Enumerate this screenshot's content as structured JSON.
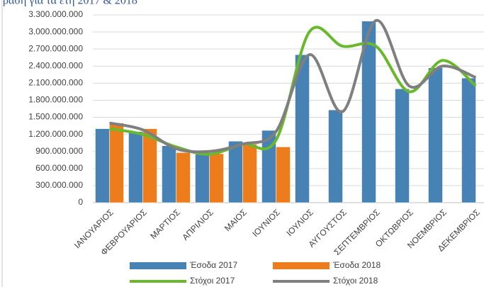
{
  "chart_data": {
    "type": "bar-line",
    "title": "ραση για τα έτη 2017 & 2018",
    "categories": [
      "ΙΑΝΟΥΑΡΙΟΣ",
      "ΦΕΒΡΟΥΑΡΙΟΣ",
      "ΜΑΡΤΙΟΣ",
      "ΑΠΡΙΛΙΟΣ",
      "ΜΑΙΟΣ",
      "ΙΟΥΝΙΟΣ",
      "ΙΟΥΛΙΟΣ",
      "ΑΥΓΟΥΣΤΟΣ",
      "ΣΕΠΤΕΜΒΡΙΟΣ",
      "ΟΚΤΩΒΡΙΟΣ",
      "ΝΟΕΜΒΡΙΟΣ",
      "ΔΕΚΕΜΒΡΙΟΣ"
    ],
    "series": [
      {
        "name": "Έσοδα 2017",
        "kind": "bar",
        "color": "#4682b4",
        "values": [
          1300000000,
          1250000000,
          1000000000,
          850000000,
          1080000000,
          1270000000,
          2600000000,
          1630000000,
          3190000000,
          2000000000,
          2370000000,
          2190000000
        ]
      },
      {
        "name": "Έσοδα 2018",
        "kind": "bar",
        "color": "#ed7d1c",
        "values": [
          1400000000,
          1300000000,
          880000000,
          860000000,
          1030000000,
          980000000,
          null,
          null,
          null,
          null,
          null,
          null
        ]
      },
      {
        "name": "Στόχοι 2017",
        "kind": "line",
        "color": "#6ab82e",
        "values": [
          1300000000,
          1200000000,
          980000000,
          850000000,
          1030000000,
          1100000000,
          3000000000,
          2750000000,
          2750000000,
          1950000000,
          2500000000,
          2050000000
        ]
      },
      {
        "name": "Στόχοι 2018",
        "kind": "line",
        "color": "#7f7f7f",
        "values": [
          1400000000,
          1280000000,
          950000000,
          900000000,
          1030000000,
          1250000000,
          2600000000,
          1600000000,
          3200000000,
          2050000000,
          2400000000,
          2200000000
        ]
      }
    ],
    "ylim": [
      0,
      3300000000
    ],
    "yticks": [
      0,
      {
        "value": 300000000,
        "label": "300.000.000"
      },
      {
        "value": 600000000,
        "label": "600.000.000"
      },
      {
        "value": 900000000,
        "label": "900.000.000"
      },
      {
        "value": 1200000000,
        "label": "1.200.000.000"
      },
      {
        "value": 1500000000,
        "label": "1.500.000.000"
      },
      {
        "value": 1800000000,
        "label": "1.800.000.000"
      },
      {
        "value": 2100000000,
        "label": "2.100.000.000"
      },
      {
        "value": 2400000000,
        "label": "2.400.000.000"
      },
      {
        "value": 2700000000,
        "label": "2.700.000.000"
      },
      {
        "value": 3000000000,
        "label": "3.000.000.000"
      },
      {
        "value": 3300000000,
        "label": "3.300.000.000"
      }
    ],
    "grid": true,
    "legend": "bottom"
  }
}
